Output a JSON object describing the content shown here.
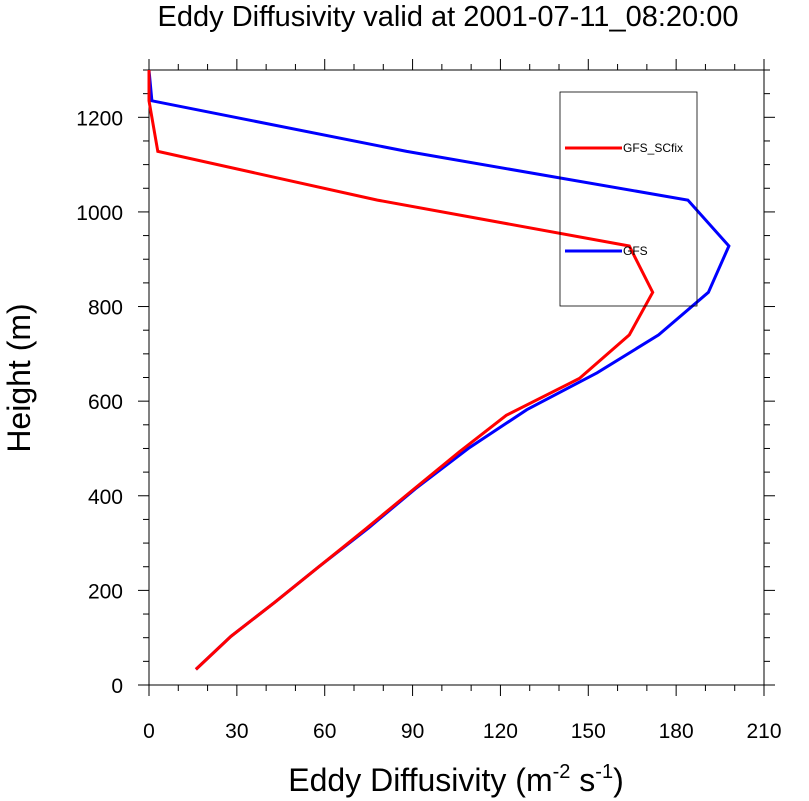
{
  "chart_data": {
    "type": "line",
    "title": "Eddy Diffusivity valid at 2001-07-11_08:20:00",
    "xlabel": {
      "prefix": "Eddy Diffusivity (m",
      "exp1": "-2",
      "middle": " s",
      "exp2": "-1",
      "suffix": ")"
    },
    "ylabel": "Height (m)",
    "xlim": [
      0,
      210
    ],
    "ylim": [
      0,
      1300
    ],
    "xticks": [
      0,
      30,
      60,
      90,
      120,
      150,
      180,
      210
    ],
    "yticks": [
      0,
      200,
      400,
      600,
      800,
      1000,
      1200
    ],
    "x_minor_step": 10,
    "y_minor_step": 50,
    "legend_position": "top-right",
    "series": [
      {
        "name": "GFS_SCfix",
        "color": "#ff0000",
        "points": [
          [
            16,
            33
          ],
          [
            28,
            103
          ],
          [
            43,
            175
          ],
          [
            58,
            250
          ],
          [
            74,
            330
          ],
          [
            90,
            412
          ],
          [
            106,
            493
          ],
          [
            122,
            570
          ],
          [
            147,
            648
          ],
          [
            164,
            740
          ],
          [
            172,
            830
          ],
          [
            164,
            928
          ],
          [
            78,
            1025
          ],
          [
            3,
            1128
          ],
          [
            0,
            1235
          ],
          [
            0,
            1300
          ]
        ]
      },
      {
        "name": "GFS",
        "color": "#0000ff",
        "points": [
          [
            16,
            33
          ],
          [
            28,
            103
          ],
          [
            43,
            175
          ],
          [
            58,
            250
          ],
          [
            75,
            332
          ],
          [
            91,
            415
          ],
          [
            109,
            500
          ],
          [
            129,
            582
          ],
          [
            153,
            660
          ],
          [
            174,
            740
          ],
          [
            191,
            830
          ],
          [
            198,
            928
          ],
          [
            184,
            1025
          ],
          [
            88,
            1128
          ],
          [
            1,
            1235
          ],
          [
            0,
            1300
          ]
        ]
      }
    ]
  }
}
